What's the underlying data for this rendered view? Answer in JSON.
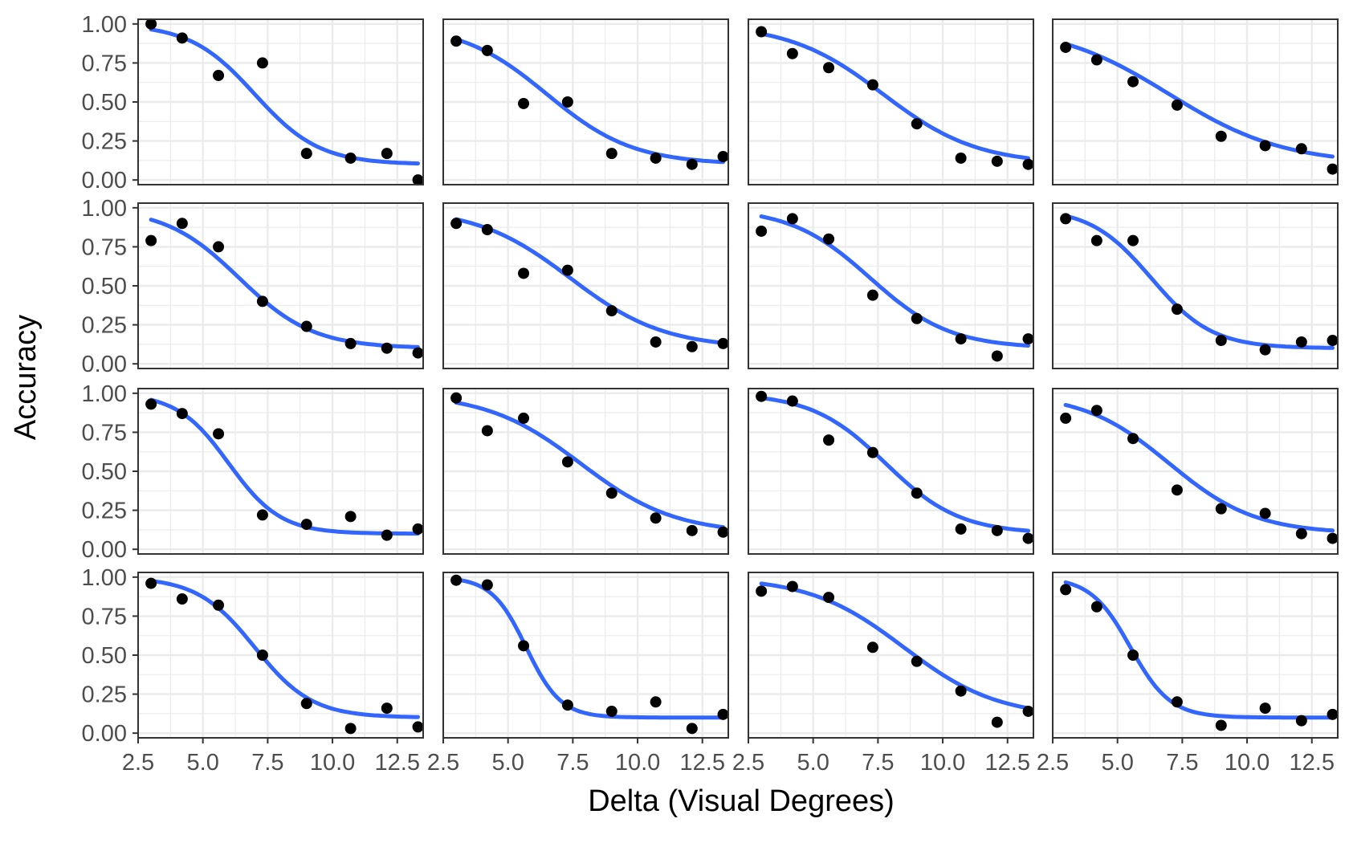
{
  "chart_data": {
    "type": "scatter",
    "facet_grid": {
      "rows": 4,
      "cols": 4
    },
    "xlabel": "Delta (Visual Degrees)",
    "ylabel": "Accuracy",
    "xlim": [
      2.5,
      13.5
    ],
    "ylim": [
      -0.03,
      1.03
    ],
    "x_ticks": [
      "2.5",
      "5.0",
      "7.5",
      "10.0",
      "12.5"
    ],
    "y_ticks": [
      "0.00",
      "0.25",
      "0.50",
      "0.75",
      "1.00"
    ],
    "x": [
      3.0,
      4.2,
      5.6,
      7.3,
      9.0,
      10.7,
      12.1,
      13.3
    ],
    "theme": {
      "point_color": "#000000",
      "curve_color": "#3366FF",
      "panel_border": "#333333",
      "grid_color": "#EBEBEB"
    },
    "panels": [
      {
        "points": [
          1.0,
          0.91,
          0.67,
          0.75,
          0.17,
          0.14,
          0.17,
          0.0
        ],
        "fit": {
          "mid": 7.0,
          "slope": 0.8,
          "lower": 0.1
        }
      },
      {
        "points": [
          0.89,
          0.83,
          0.49,
          0.5,
          0.17,
          0.14,
          0.1,
          0.15
        ],
        "fit": {
          "mid": 6.5,
          "slope": 0.6,
          "lower": 0.1
        }
      },
      {
        "points": [
          0.95,
          0.81,
          0.72,
          0.61,
          0.36,
          0.14,
          0.12,
          0.1
        ],
        "fit": {
          "mid": 7.7,
          "slope": 0.55,
          "lower": 0.1
        }
      },
      {
        "points": [
          0.85,
          0.77,
          0.63,
          0.48,
          0.28,
          0.22,
          0.2,
          0.07
        ],
        "fit": {
          "mid": 7.0,
          "slope": 0.45,
          "lower": 0.1
        }
      },
      {
        "points": [
          0.79,
          0.9,
          0.75,
          0.4,
          0.24,
          0.13,
          0.1,
          0.07
        ],
        "fit": {
          "mid": 6.4,
          "slope": 0.7,
          "lower": 0.1
        }
      },
      {
        "points": [
          0.9,
          0.86,
          0.58,
          0.6,
          0.34,
          0.14,
          0.11,
          0.13
        ],
        "fit": {
          "mid": 7.4,
          "slope": 0.55,
          "lower": 0.1
        }
      },
      {
        "points": [
          0.85,
          0.93,
          0.8,
          0.44,
          0.29,
          0.16,
          0.05,
          0.16
        ],
        "fit": {
          "mid": 7.2,
          "slope": 0.65,
          "lower": 0.1
        }
      },
      {
        "points": [
          0.93,
          0.79,
          0.79,
          0.35,
          0.15,
          0.09,
          0.14,
          0.15
        ],
        "fit": {
          "mid": 6.3,
          "slope": 0.85,
          "lower": 0.1
        }
      },
      {
        "points": [
          0.93,
          0.87,
          0.74,
          0.22,
          0.16,
          0.21,
          0.09,
          0.13
        ],
        "fit": {
          "mid": 6.0,
          "slope": 1.0,
          "lower": 0.1
        }
      },
      {
        "points": [
          0.97,
          0.76,
          0.84,
          0.56,
          0.36,
          0.2,
          0.12,
          0.11
        ],
        "fit": {
          "mid": 7.8,
          "slope": 0.55,
          "lower": 0.1
        }
      },
      {
        "points": [
          0.98,
          0.95,
          0.7,
          0.62,
          0.36,
          0.13,
          0.12,
          0.07
        ],
        "fit": {
          "mid": 7.8,
          "slope": 0.7,
          "lower": 0.1
        }
      },
      {
        "points": [
          0.84,
          0.89,
          0.71,
          0.38,
          0.26,
          0.23,
          0.1,
          0.07
        ],
        "fit": {
          "mid": 7.0,
          "slope": 0.6,
          "lower": 0.1
        }
      },
      {
        "points": [
          0.96,
          0.86,
          0.82,
          0.5,
          0.19,
          0.03,
          0.16,
          0.04
        ],
        "fit": {
          "mid": 7.0,
          "slope": 0.9,
          "lower": 0.1
        }
      },
      {
        "points": [
          0.98,
          0.95,
          0.56,
          0.18,
          0.14,
          0.2,
          0.03,
          0.12
        ],
        "fit": {
          "mid": 5.7,
          "slope": 1.5,
          "lower": 0.1
        }
      },
      {
        "points": [
          0.91,
          0.94,
          0.87,
          0.55,
          0.46,
          0.27,
          0.07,
          0.14
        ],
        "fit": {
          "mid": 8.5,
          "slope": 0.55,
          "lower": 0.1
        }
      },
      {
        "points": [
          0.92,
          0.81,
          0.5,
          0.2,
          0.05,
          0.16,
          0.08,
          0.12
        ],
        "fit": {
          "mid": 5.5,
          "slope": 1.3,
          "lower": 0.1
        }
      }
    ]
  }
}
